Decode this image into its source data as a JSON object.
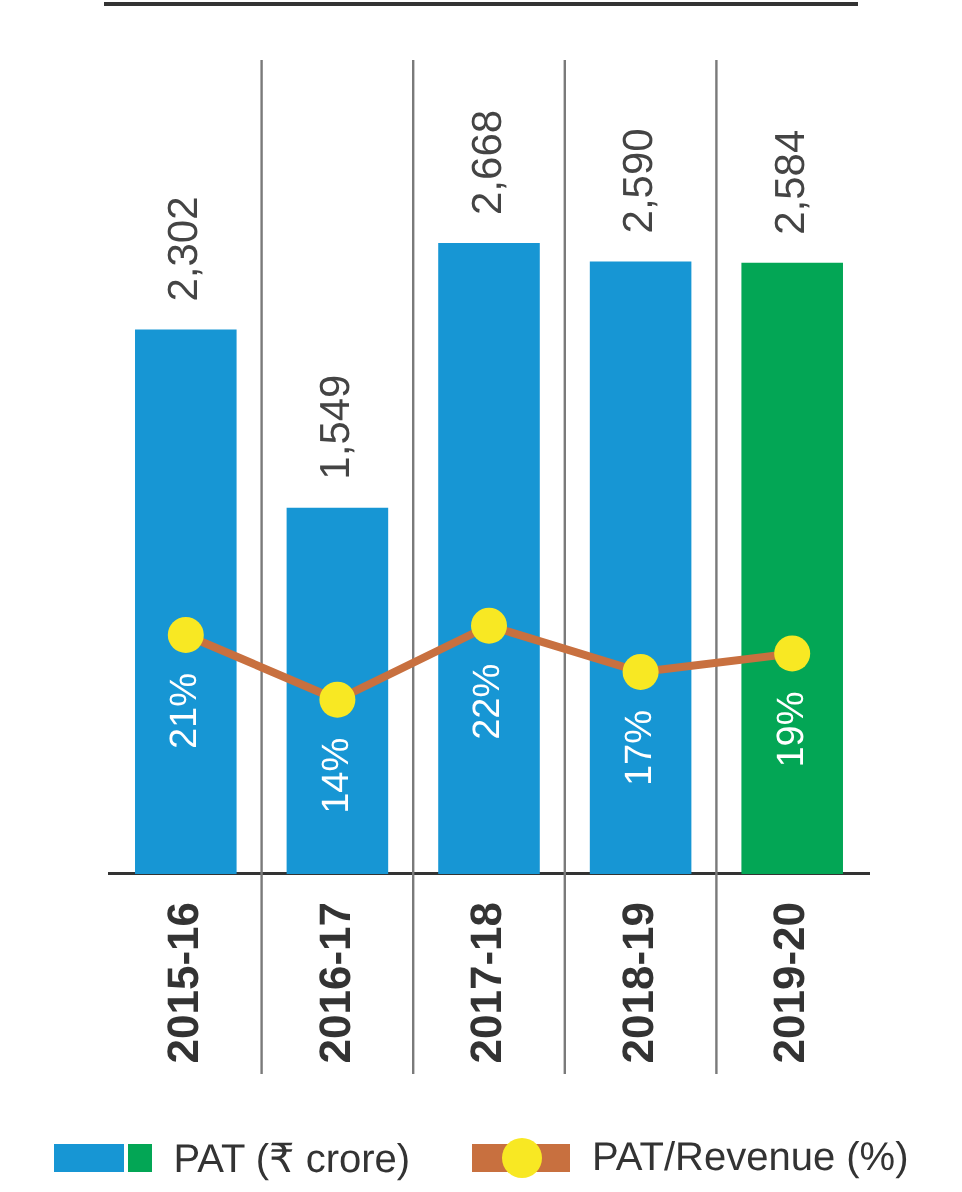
{
  "chart_data": {
    "type": "bar",
    "categories": [
      "2015-16",
      "2016-17",
      "2017-18",
      "2018-19",
      "2019-20"
    ],
    "series": [
      {
        "name": "PAT (₹ crore)",
        "colors": [
          "#1796d4",
          "#1796d4",
          "#1796d4",
          "#1796d4",
          "#03a655"
        ],
        "values": [
          2302,
          1549,
          2668,
          2590,
          2584
        ],
        "value_labels": [
          "2,302",
          "1,549",
          "2,668",
          "2,590",
          "2,584"
        ]
      },
      {
        "name": "PAT/Revenue (%)",
        "type": "line",
        "axis": "y2",
        "color": "#c8703f",
        "colors": [
          "#f8e823",
          "#f8e823",
          "#f8e823",
          "#f8e823",
          "#f8e823"
        ],
        "values": [
          21,
          14,
          22,
          17,
          19
        ],
        "value_labels": [
          "21%",
          "14%",
          "22%",
          "17%",
          "19%"
        ]
      }
    ],
    "grid": "x",
    "legend": "bottom",
    "tick_labels": "x",
    "marker": "circle",
    "line_style": "solid"
  }
}
